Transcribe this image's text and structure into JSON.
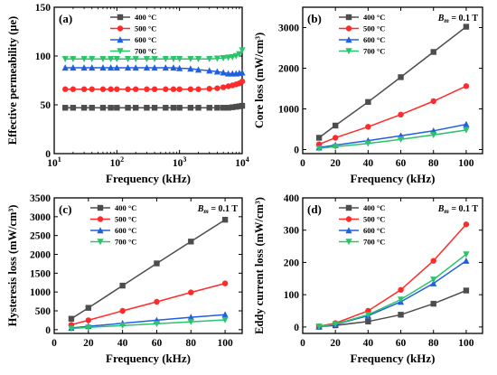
{
  "colors": {
    "400": "#4d4d4d",
    "500": "#ff2a2a",
    "600": "#1f5fe0",
    "700": "#2bc46b"
  },
  "chart_data": [
    {
      "type": "line",
      "panel_label": "(a)",
      "xlabel": "Frequency (kHz)",
      "ylabel": "Effective permeability (μe)",
      "xscale": "log",
      "xlim": [
        10,
        10000
      ],
      "ylim": [
        0,
        150
      ],
      "xticks": [
        10,
        100,
        1000,
        10000
      ],
      "xtick_labels": [
        "10^1",
        "10^2",
        "10^3",
        "10^4"
      ],
      "yticks": [
        0,
        50,
        100,
        150
      ],
      "ytick_labels": [
        "0",
        "50",
        "100",
        "150"
      ],
      "legend_position": "top-center",
      "x": [
        15,
        20,
        30,
        40,
        60,
        80,
        100,
        150,
        200,
        300,
        400,
        600,
        800,
        1000,
        1500,
        2000,
        3000,
        4000,
        5000,
        6000,
        7000,
        8000,
        9000,
        10000
      ],
      "series": [
        {
          "name": "400 °C",
          "color": "400",
          "marker": "square",
          "values": [
            47,
            47,
            47,
            47,
            47,
            47,
            47,
            47,
            47,
            47,
            47,
            47,
            47,
            47,
            47,
            47,
            47,
            47,
            47,
            47,
            47.5,
            48,
            48.5,
            49
          ]
        },
        {
          "name": "500 °C",
          "color": "500",
          "marker": "circle",
          "values": [
            66,
            66,
            66,
            66,
            66,
            66,
            66,
            66,
            66,
            66,
            66,
            66,
            66,
            66,
            66,
            66,
            66.5,
            67,
            68,
            69,
            70,
            71,
            72,
            74
          ]
        },
        {
          "name": "600 °C",
          "color": "600",
          "marker": "triangle-up",
          "values": [
            88,
            88,
            88,
            88,
            88,
            88,
            88,
            88,
            88,
            88,
            88,
            88,
            88,
            87.5,
            87,
            86,
            85,
            84,
            83,
            82,
            82,
            82,
            82.5,
            83
          ]
        },
        {
          "name": "700 °C",
          "color": "700",
          "marker": "triangle-down",
          "values": [
            97,
            97,
            97,
            97,
            97,
            97,
            97,
            97,
            97,
            97,
            97,
            97,
            97,
            97,
            97,
            97,
            97,
            97.5,
            98,
            98.5,
            99,
            100,
            102,
            106
          ]
        }
      ]
    },
    {
      "type": "line",
      "panel_label": "(b)",
      "xlabel": "Frequency (kHz)",
      "ylabel": "Core loss (mW/cm³)",
      "xscale": "linear",
      "xlim": [
        0,
        110
      ],
      "ylim": [
        -100,
        3500
      ],
      "xticks": [
        0,
        20,
        40,
        60,
        80,
        100
      ],
      "yticks": [
        0,
        1000,
        2000,
        3000
      ],
      "legend_position": "top-center",
      "annotation": {
        "symbol": "B",
        "sub": "m",
        "text": " = 0.1 T"
      },
      "x": [
        10,
        20,
        40,
        60,
        80,
        100
      ],
      "series": [
        {
          "name": "400 °C",
          "color": "400",
          "marker": "square",
          "values": [
            290,
            590,
            1170,
            1780,
            2400,
            3020
          ]
        },
        {
          "name": "500 °C",
          "color": "500",
          "marker": "circle",
          "values": [
            130,
            290,
            560,
            860,
            1190,
            1560
          ]
        },
        {
          "name": "600 °C",
          "color": "600",
          "marker": "triangle-up",
          "values": [
            50,
            110,
            220,
            340,
            460,
            620
          ]
        },
        {
          "name": "700 °C",
          "color": "700",
          "marker": "triangle-down",
          "values": [
            30,
            70,
            150,
            250,
            360,
            480
          ]
        }
      ]
    },
    {
      "type": "line",
      "panel_label": "(c)",
      "xlabel": "Frequency (kHz)",
      "ylabel": "Hysteresis loss (mW/cm³)",
      "xscale": "linear",
      "xlim": [
        0,
        110
      ],
      "ylim": [
        -100,
        3500
      ],
      "xticks": [
        0,
        20,
        40,
        60,
        80,
        100
      ],
      "yticks": [
        0,
        500,
        1000,
        1500,
        2000,
        2500,
        3000,
        3500
      ],
      "legend_position": "top-center",
      "annotation": {
        "symbol": "B",
        "sub": "m",
        "text": " = 0.1 T"
      },
      "x": [
        10,
        20,
        40,
        60,
        80,
        100
      ],
      "series": [
        {
          "name": "400 °C",
          "color": "400",
          "marker": "square",
          "values": [
            290,
            580,
            1170,
            1760,
            2340,
            2920
          ]
        },
        {
          "name": "500 °C",
          "color": "500",
          "marker": "circle",
          "values": [
            130,
            250,
            500,
            740,
            990,
            1230
          ]
        },
        {
          "name": "600 °C",
          "color": "600",
          "marker": "triangle-up",
          "values": [
            45,
            90,
            170,
            250,
            330,
            400
          ]
        },
        {
          "name": "700 °C",
          "color": "700",
          "marker": "triangle-down",
          "values": [
            30,
            60,
            110,
            160,
            210,
            260
          ]
        }
      ]
    },
    {
      "type": "line",
      "panel_label": "(d)",
      "xlabel": "Frequency (kHz)",
      "ylabel": "Eddy current loss (mW/cm³)",
      "xscale": "linear",
      "xlim": [
        0,
        110
      ],
      "ylim": [
        -20,
        400
      ],
      "xticks": [
        0,
        20,
        40,
        60,
        80,
        100
      ],
      "yticks": [
        0,
        100,
        200,
        300,
        400
      ],
      "legend_position": "top-center",
      "annotation": {
        "symbol": "B",
        "sub": "m",
        "text": " = 0.1 T"
      },
      "x": [
        10,
        20,
        40,
        60,
        80,
        100
      ],
      "series": [
        {
          "name": "400 °C",
          "color": "400",
          "marker": "square",
          "values": [
            1,
            5,
            17,
            38,
            72,
            113
          ]
        },
        {
          "name": "500 °C",
          "color": "500",
          "marker": "circle",
          "values": [
            2,
            12,
            50,
            115,
            205,
            318
          ]
        },
        {
          "name": "600 °C",
          "color": "600",
          "marker": "triangle-up",
          "values": [
            1,
            8,
            35,
            78,
            135,
            205
          ]
        },
        {
          "name": "700 °C",
          "color": "700",
          "marker": "triangle-down",
          "values": [
            1,
            9,
            38,
            85,
            147,
            225
          ]
        }
      ]
    }
  ]
}
